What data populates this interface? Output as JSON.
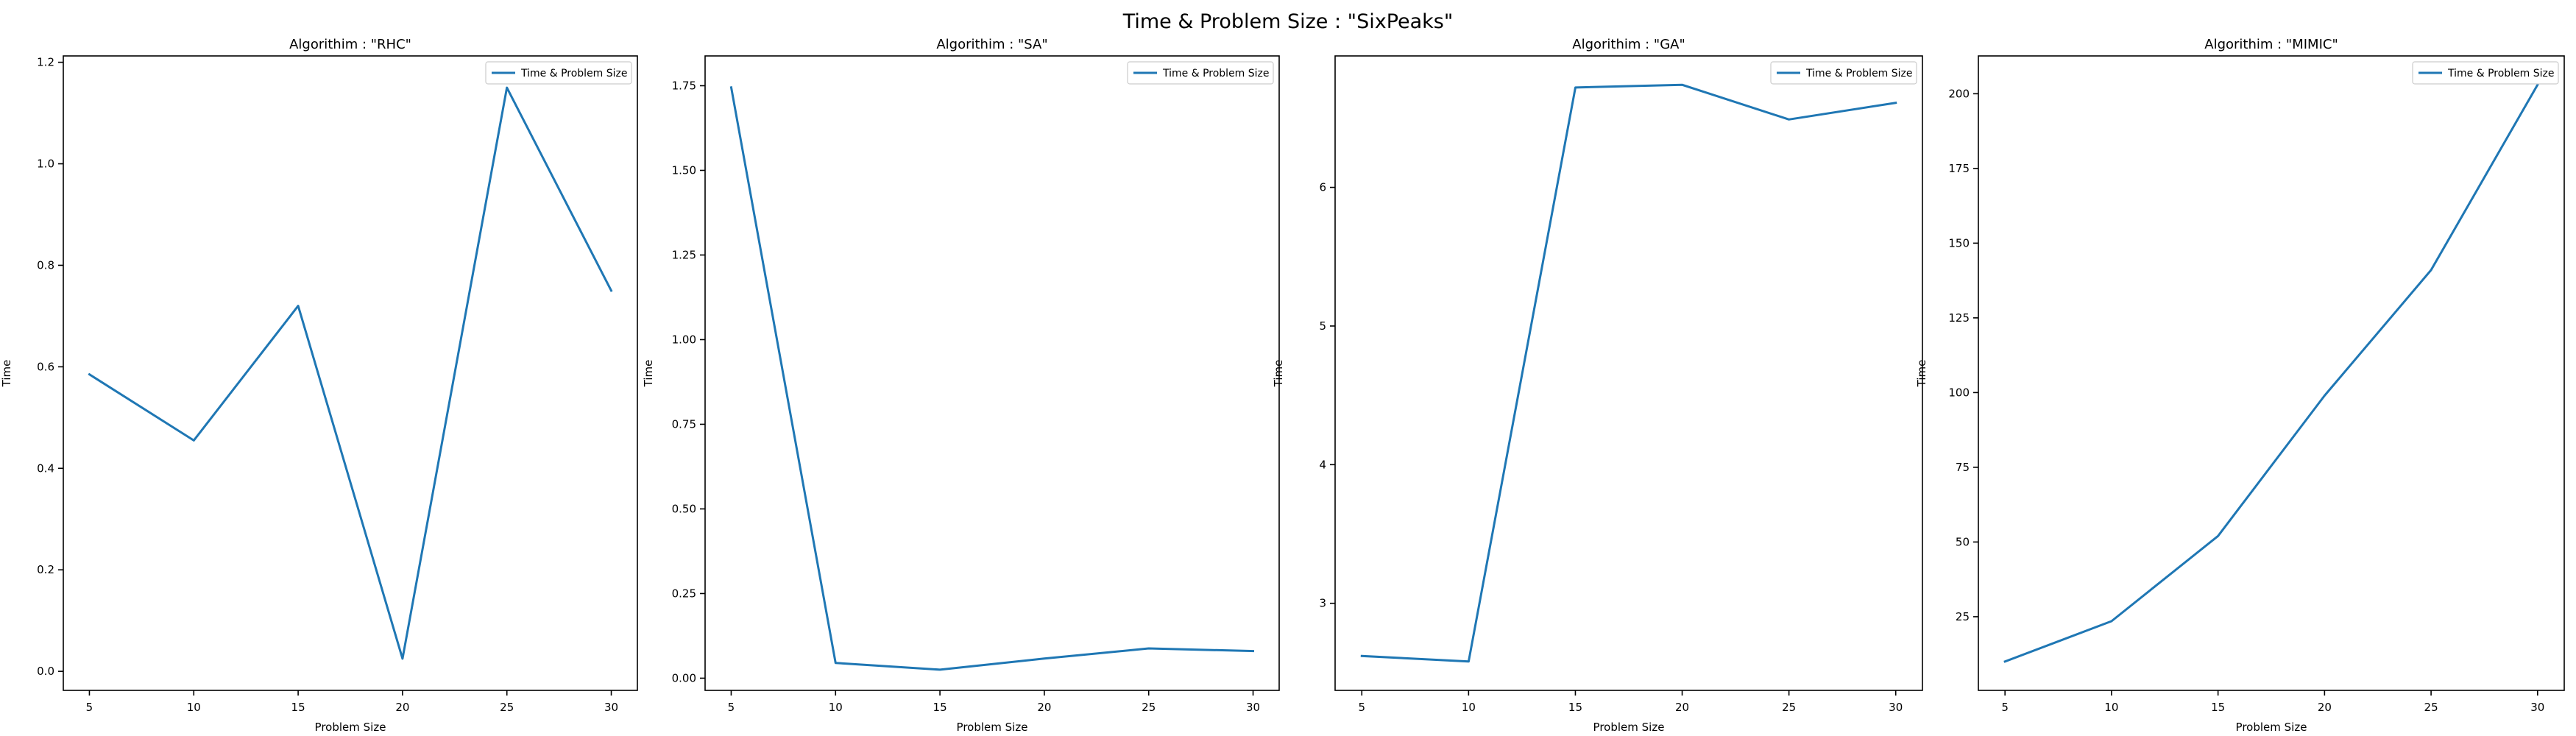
{
  "figure": {
    "title": "Time & Problem Size : \"SixPeaks\""
  },
  "colors": {
    "series": "#1f77b4",
    "axis": "#000000",
    "legend_border": "#cccccc"
  },
  "chart_data": [
    {
      "type": "line",
      "title": "Algorithim : \"RHC\"",
      "xlabel": "Problem Size",
      "ylabel": "Time",
      "x": [
        5,
        10,
        15,
        20,
        25,
        30
      ],
      "series": [
        {
          "name": "Time & Problem Size",
          "values": [
            0.585,
            0.455,
            0.72,
            0.025,
            1.15,
            0.75
          ]
        }
      ],
      "xticks": [
        5,
        10,
        15,
        20,
        25,
        30
      ],
      "xtick_labels": [
        "5",
        "10",
        "15",
        "20",
        "25",
        "30"
      ],
      "yticks": [
        0.0,
        0.2,
        0.4,
        0.6,
        0.8,
        1.0,
        1.2
      ],
      "ytick_labels": [
        "0.0",
        "0.2",
        "0.4",
        "0.6",
        "0.8",
        "1.0",
        "1.2"
      ],
      "xlim": [
        3.75,
        31.25
      ],
      "ylim": [
        -0.0375,
        1.2125
      ],
      "grid": false,
      "legend": "top-right"
    },
    {
      "type": "line",
      "title": "Algorithim : \"SA\"",
      "xlabel": "Problem Size",
      "ylabel": "Time",
      "x": [
        5,
        10,
        15,
        20,
        25,
        30
      ],
      "series": [
        {
          "name": "Time & Problem Size",
          "values": [
            1.745,
            0.045,
            0.025,
            0.058,
            0.088,
            0.08
          ]
        }
      ],
      "xticks": [
        5,
        10,
        15,
        20,
        25,
        30
      ],
      "xtick_labels": [
        "5",
        "10",
        "15",
        "20",
        "25",
        "30"
      ],
      "yticks": [
        0.0,
        0.25,
        0.5,
        0.75,
        1.0,
        1.25,
        1.5,
        1.75
      ],
      "ytick_labels": [
        "0.00",
        "0.25",
        "0.50",
        "0.75",
        "1.00",
        "1.25",
        "1.50",
        "1.75"
      ],
      "xlim": [
        3.75,
        31.25
      ],
      "ylim": [
        -0.036,
        1.838
      ],
      "grid": false,
      "legend": "top-right"
    },
    {
      "type": "line",
      "title": "Algorithim : \"GA\"",
      "xlabel": "Problem Size",
      "ylabel": "Time",
      "x": [
        5,
        10,
        15,
        20,
        25,
        30
      ],
      "series": [
        {
          "name": "Time & Problem Size",
          "values": [
            2.62,
            2.58,
            6.72,
            6.74,
            6.49,
            6.61
          ]
        }
      ],
      "xticks": [
        5,
        10,
        15,
        20,
        25,
        30
      ],
      "xtick_labels": [
        "5",
        "10",
        "15",
        "20",
        "25",
        "30"
      ],
      "yticks": [
        3,
        4,
        5,
        6
      ],
      "ytick_labels": [
        "3",
        "4",
        "5",
        "6"
      ],
      "xlim": [
        3.75,
        31.25
      ],
      "ylim": [
        2.372,
        6.948
      ],
      "grid": false,
      "legend": "top-right"
    },
    {
      "type": "line",
      "title": "Algorithim : \"MIMIC\"",
      "xlabel": "Problem Size",
      "ylabel": "Time",
      "x": [
        5,
        10,
        15,
        20,
        25,
        30
      ],
      "series": [
        {
          "name": "Time & Problem Size",
          "values": [
            10,
            23.5,
            52,
            99,
            141,
            203
          ]
        }
      ],
      "xticks": [
        5,
        10,
        15,
        20,
        25,
        30
      ],
      "xtick_labels": [
        "5",
        "10",
        "15",
        "20",
        "25",
        "30"
      ],
      "yticks": [
        25,
        50,
        75,
        100,
        125,
        150,
        175,
        200
      ],
      "ytick_labels": [
        "25",
        "50",
        "75",
        "100",
        "125",
        "150",
        "175",
        "200"
      ],
      "xlim": [
        3.75,
        31.25
      ],
      "ylim": [
        0.35,
        212.65
      ],
      "grid": false,
      "legend": "top-right"
    }
  ]
}
